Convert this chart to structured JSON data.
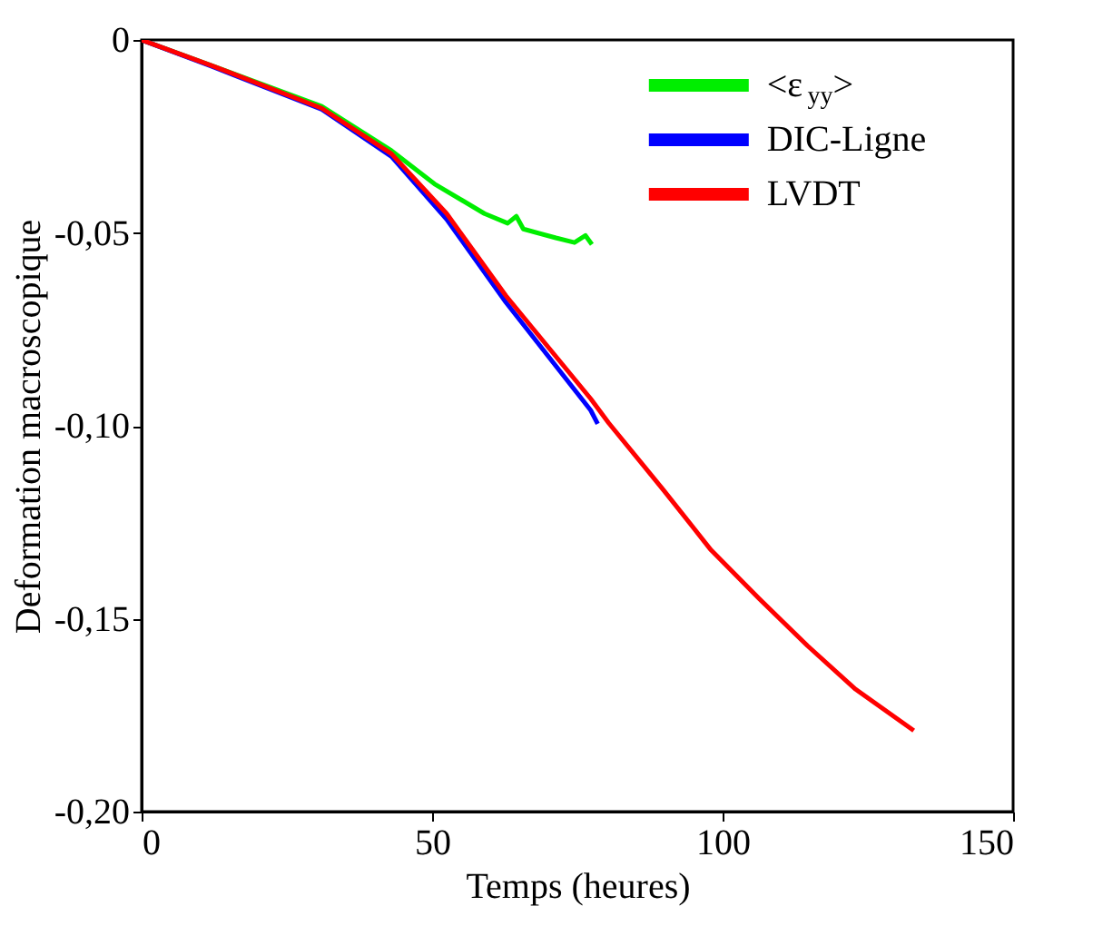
{
  "chart_data": {
    "type": "line",
    "xlabel": "Temps (heures)",
    "ylabel": "Deformation macroscopique",
    "xlim": [
      0,
      150
    ],
    "xticks": [
      0,
      50,
      100,
      150
    ],
    "ylim": [
      -0.2,
      0
    ],
    "yticks": [
      {
        "value": 0,
        "label": "0"
      },
      {
        "value": -0.05,
        "label": "-0,05"
      },
      {
        "value": -0.1,
        "label": "-0,10"
      },
      {
        "value": -0.15,
        "label": "-0,15"
      },
      {
        "value": -0.2,
        "label": "-0,20"
      }
    ],
    "grid": false,
    "legend": "top right",
    "marker": "none",
    "line_style": "solid",
    "series": [
      {
        "name": "<ε$_{yy}$>",
        "color": "#00ee00",
        "x": [
          0,
          12,
          31,
          43,
          50.4,
          59,
          63,
          64.5,
          65.7,
          71.3,
          74.5,
          76.4,
          77.5
        ],
        "values": [
          0,
          -0.0066,
          -0.0172,
          -0.0287,
          -0.0373,
          -0.045,
          -0.0475,
          -0.0457,
          -0.049,
          -0.0513,
          -0.0525,
          -0.0507,
          -0.053
        ]
      },
      {
        "name": "DIC-Ligne",
        "color": "#0000ff",
        "x": [
          0,
          12,
          31,
          43,
          52.5,
          62.7,
          70,
          77.3,
          78.5
        ],
        "values": [
          0,
          -0.0068,
          -0.018,
          -0.0302,
          -0.0465,
          -0.068,
          -0.082,
          -0.096,
          -0.0995
        ]
      },
      {
        "name": "LVDT",
        "color": "#ff0000",
        "x": [
          0,
          12,
          31,
          43,
          52.5,
          62.7,
          77.3,
          80.4,
          89.8,
          98,
          106.3,
          114.6,
          122.9,
          132.9
        ],
        "values": [
          0,
          -0.0066,
          -0.0177,
          -0.0295,
          -0.045,
          -0.0663,
          -0.093,
          -0.0993,
          -0.1166,
          -0.1322,
          -0.1448,
          -0.157,
          -0.1683,
          -0.179
        ]
      }
    ]
  }
}
